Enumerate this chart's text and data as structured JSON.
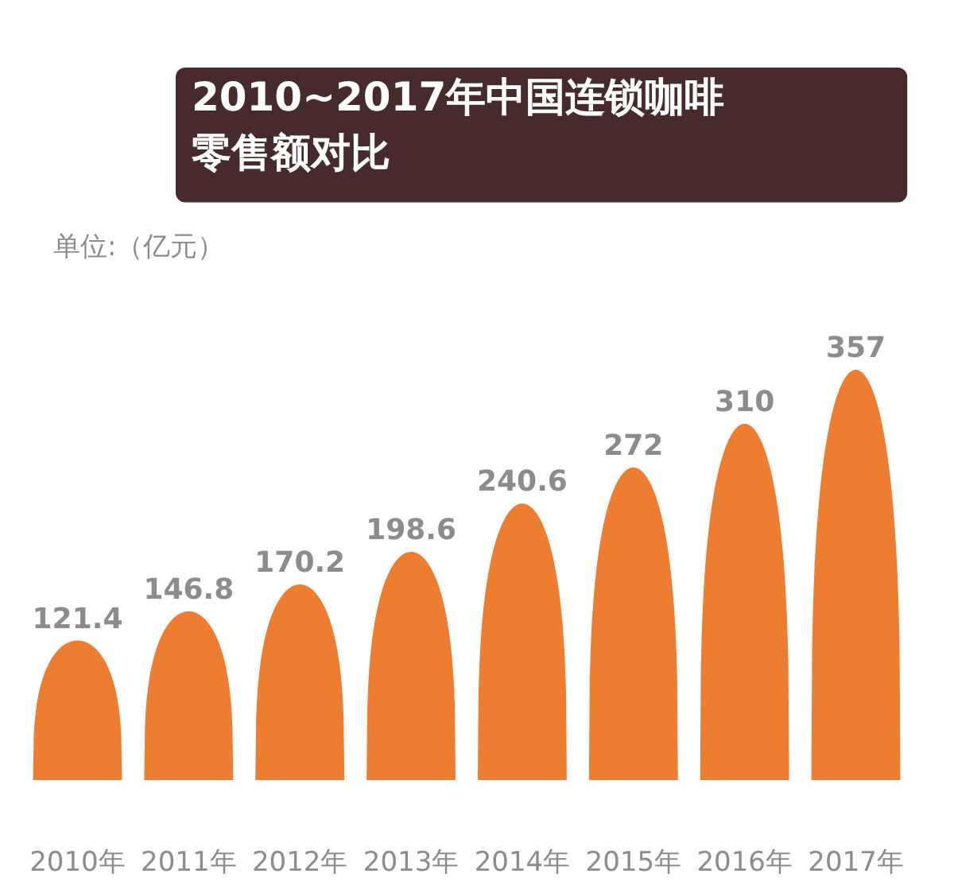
{
  "chart_data": {
    "type": "bar",
    "title": "2010~2017年中国连锁咖啡零售额对比",
    "annotations": [
      "单位:（亿元）"
    ],
    "categories": [
      "2010年",
      "2011年",
      "2012年",
      "2013年",
      "2014年",
      "2015年",
      "2016年",
      "2017年"
    ],
    "values": [
      121.4,
      146.8,
      170.2,
      198.6,
      240.6,
      272,
      310,
      357
    ],
    "color": "#ed7d31",
    "data_labels": true
  }
}
